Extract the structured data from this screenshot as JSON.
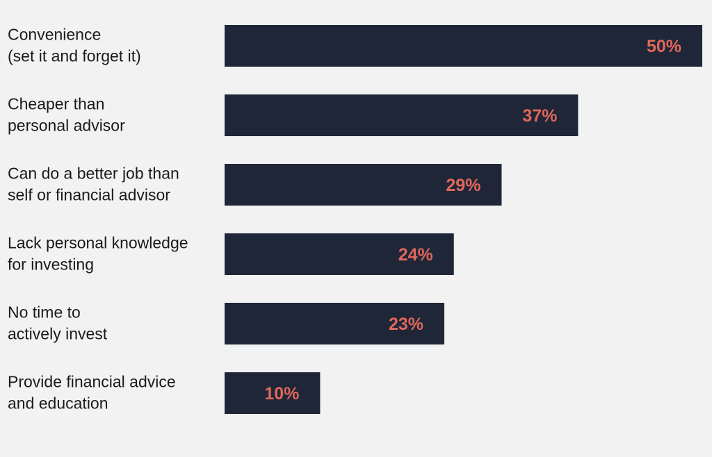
{
  "chart_data": {
    "type": "bar",
    "orientation": "horizontal",
    "categories": [
      [
        "Convenience",
        "(set it and forget it)"
      ],
      [
        "Cheaper than",
        "personal advisor"
      ],
      [
        "Can do a better job than",
        "self or financial advisor"
      ],
      [
        "Lack personal knowledge",
        "for investing"
      ],
      [
        "No time to",
        "actively invest"
      ],
      [
        "Provide financial advice",
        "and education"
      ]
    ],
    "values": [
      50,
      37,
      29,
      24,
      23,
      10
    ],
    "value_labels": [
      "50%",
      "37%",
      "29%",
      "24%",
      "23%",
      "10%"
    ],
    "unit": "%",
    "xlim": [
      0,
      50
    ],
    "title": "",
    "xlabel": "",
    "ylabel": "",
    "grid": false,
    "legend": "none"
  },
  "colors": {
    "background": "#f2f2f3",
    "bar": "#1e2637",
    "value_label": "#e0675a",
    "category_label": "#1a1a1a"
  }
}
